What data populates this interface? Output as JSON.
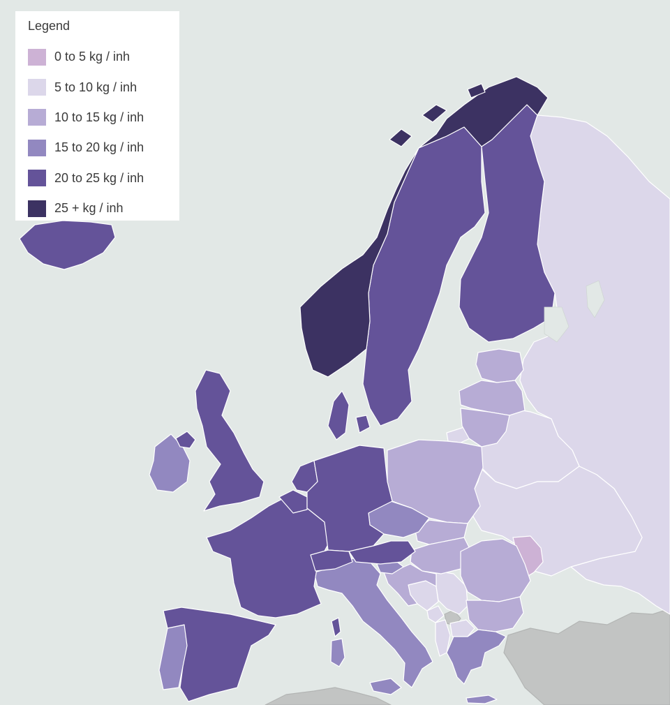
{
  "legend": {
    "title": "Legend",
    "classes": [
      {
        "label": "0 to 5 kg / inh",
        "color": "#cdb2d5"
      },
      {
        "label": "5 to 10 kg / inh",
        "color": "#dcd7ea"
      },
      {
        "label": "10 to 15 kg / inh",
        "color": "#b7acd5"
      },
      {
        "label": "15 to 20 kg / inh",
        "color": "#9288c0"
      },
      {
        "label": "20 to 25 kg / inh",
        "color": "#645399"
      },
      {
        "label": "25 + kg / inh",
        "color": "#3c3262"
      }
    ]
  },
  "colors": {
    "sea": "#e2e8e6",
    "no_data": "#c2c4c3",
    "border": "#ffffff"
  },
  "regions": {
    "norway": "25 + kg / inh",
    "sweden": "20 to 25 kg / inh",
    "finland": "20 to 25 kg / inh",
    "iceland": "20 to 25 kg / inh",
    "denmark": "20 to 25 kg / inh",
    "united_kingdom": "20 to 25 kg / inh",
    "ireland": "15 to 20 kg / inh",
    "france": "20 to 25 kg / inh",
    "spain": "20 to 25 kg / inh",
    "portugal": "15 to 20 kg / inh",
    "germany": "20 to 25 kg / inh",
    "netherlands": "20 to 25 kg / inh",
    "belgium": "20 to 25 kg / inh",
    "switzerland": "20 to 25 kg / inh",
    "austria": "20 to 25 kg / inh",
    "italy": "15 to 20 kg / inh",
    "czechia": "15 to 20 kg / inh",
    "slovenia": "15 to 20 kg / inh",
    "greece": "15 to 20 kg / inh",
    "poland": "10 to 15 kg / inh",
    "estonia": "10 to 15 kg / inh",
    "latvia": "10 to 15 kg / inh",
    "lithuania": "10 to 15 kg / inh",
    "slovakia": "10 to 15 kg / inh",
    "hungary": "10 to 15 kg / inh",
    "romania": "10 to 15 kg / inh",
    "bulgaria": "10 to 15 kg / inh",
    "croatia": "10 to 15 kg / inh",
    "russia": "5 to 10 kg / inh",
    "belarus": "5 to 10 kg / inh",
    "ukraine": "5 to 10 kg / inh",
    "bosnia": "5 to 10 kg / inh",
    "serbia": "5 to 10 kg / inh",
    "montenegro": "5 to 10 kg / inh",
    "albania": "5 to 10 kg / inh",
    "north_macedonia": "5 to 10 kg / inh",
    "moldova": "0 to 5 kg / inh"
  }
}
